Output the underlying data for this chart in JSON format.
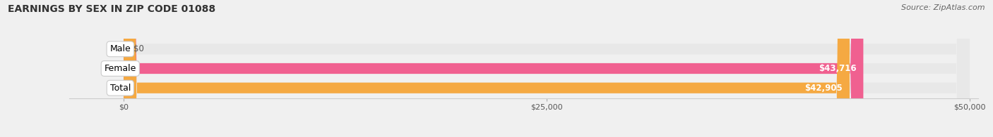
{
  "title": "EARNINGS BY SEX IN ZIP CODE 01088",
  "source": "Source: ZipAtlas.com",
  "categories": [
    "Male",
    "Female",
    "Total"
  ],
  "values": [
    0,
    43716,
    42905
  ],
  "bar_colors": [
    "#a8c4e0",
    "#f06090",
    "#f5a942"
  ],
  "value_labels": [
    "$0",
    "$43,716",
    "$42,905"
  ],
  "xlim": [
    0,
    50000
  ],
  "xtick_values": [
    0,
    25000,
    50000
  ],
  "xtick_labels": [
    "$0",
    "$25,000",
    "$50,000"
  ],
  "bar_height": 0.55,
  "background_color": "#f0f0f0",
  "bar_bg_color": "#e8e8e8",
  "title_fontsize": 10,
  "source_fontsize": 8,
  "label_fontsize": 9,
  "value_fontsize": 8.5
}
